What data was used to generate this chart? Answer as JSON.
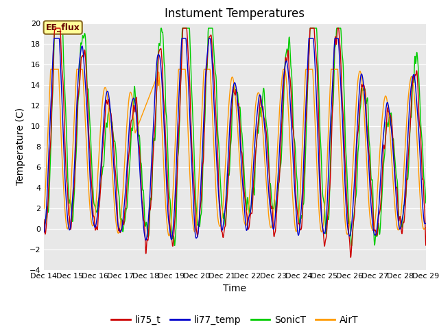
{
  "title": "Instument Temperatures",
  "xlabel": "Time",
  "ylabel": "Temperature (C)",
  "ylim": [
    -4,
    20
  ],
  "xlim": [
    0,
    360
  ],
  "x_tick_labels": [
    "Dec 14",
    "Dec 15",
    "Dec 16",
    "Dec 17",
    "Dec 18",
    "Dec 19",
    "Dec 20",
    "Dec 21",
    "Dec 22",
    "Dec 23",
    "Dec 24",
    "Dec 25",
    "Dec 26",
    "Dec 27",
    "Dec 28",
    "Dec 29"
  ],
  "x_tick_positions": [
    0,
    24,
    48,
    72,
    96,
    120,
    144,
    168,
    192,
    216,
    240,
    264,
    288,
    312,
    336,
    360
  ],
  "yticks": [
    -4,
    -2,
    0,
    2,
    4,
    6,
    8,
    10,
    12,
    14,
    16,
    18,
    20
  ],
  "colors": {
    "li75_t": "#cc0000",
    "li77_temp": "#0000cc",
    "SonicT": "#00cc00",
    "AirT": "#ff9900"
  },
  "legend_labels": [
    "li75_t",
    "li77_temp",
    "SonicT",
    "AirT"
  ],
  "annotation_text": "EE_flux",
  "annotation_box_color": "#ffff99",
  "annotation_border_color": "#886622",
  "annotation_text_color": "#660000",
  "background_color": "#e8e8e8",
  "fig_background": "#ffffff",
  "title_fontsize": 12,
  "axis_label_fontsize": 10,
  "tick_fontsize": 8,
  "legend_fontsize": 10,
  "linewidth": 1.0
}
